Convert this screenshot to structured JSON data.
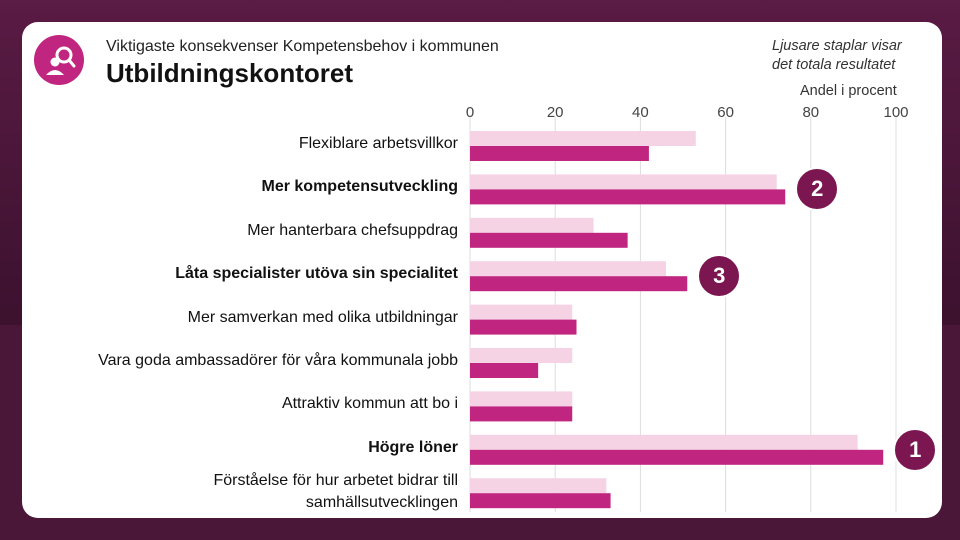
{
  "header": {
    "subtitle": "Viktigaste konsekvenser Kompetensbehov i kommunen",
    "title": "Utbildningskontoret",
    "note_line1": "Ljusare staplar visar",
    "note_line2": "det totala resultatet"
  },
  "colors": {
    "dark_bar": "#c0267f",
    "light_bar": "#f5d3e4",
    "badge": "#7b1650"
  },
  "chart_data": {
    "type": "bar",
    "orientation": "horizontal",
    "axis_title": "Andel i procent",
    "xlim": [
      0,
      100
    ],
    "ticks": [
      0,
      20,
      40,
      60,
      80,
      100
    ],
    "categories": [
      "Flexiblare arbetsvillkor",
      "Mer kompetensutveckling",
      "Mer hanterbara chefsuppdrag",
      "Låta specialister utöva sin specialitet",
      "Mer samverkan med olika utbildningar",
      "Vara goda ambassadörer för våra kommunala jobb",
      "Attraktiv kommun att bo i",
      "Högre löner",
      "Förståelse för hur arbetet bidrar till samhällsutvecklingen"
    ],
    "series": [
      {
        "name": "Totalt resultat",
        "values": [
          53,
          72,
          29,
          46,
          24,
          24,
          24,
          91,
          32
        ]
      },
      {
        "name": "Utbildningskontoret",
        "values": [
          42,
          74,
          37,
          51,
          25,
          16,
          24,
          97,
          33
        ]
      }
    ],
    "badges": [
      {
        "label": "2",
        "category_index": 1
      },
      {
        "label": "3",
        "category_index": 3
      },
      {
        "label": "1",
        "category_index": 7
      }
    ]
  }
}
